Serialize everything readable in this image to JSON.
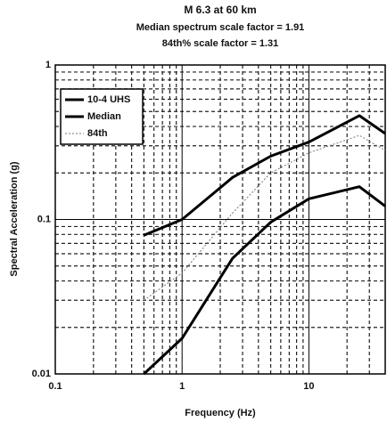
{
  "chart_data": {
    "type": "line",
    "title": "M 6.3 at 60 km",
    "subtitle": [
      "Median spectrum scale factor = 1.91",
      "84th% scale factor = 1.31"
    ],
    "xlabel": "Frequency (Hz)",
    "ylabel": "Spectral Acceleration (g)",
    "x": [
      0.5,
      1,
      2.5,
      5,
      10,
      25,
      40
    ],
    "series": [
      {
        "name": "10-4 UHS",
        "color": "#000000",
        "values": [
          0.079,
          0.1,
          0.187,
          0.257,
          0.317,
          0.47,
          0.36
        ]
      },
      {
        "name": "Median",
        "color": "#000000",
        "values": [
          0.01,
          0.017,
          0.056,
          0.096,
          0.136,
          0.163,
          0.122
        ]
      },
      {
        "name": "84th",
        "color": "#777777",
        "values": [
          0.03,
          0.045,
          0.11,
          0.2,
          0.27,
          0.35,
          0.28
        ]
      }
    ],
    "xlim": [
      0.1,
      40
    ],
    "ylim": [
      0.01,
      1
    ],
    "xticks": [
      0.1,
      1,
      10
    ],
    "yticks": [
      0.01,
      0.1,
      1
    ],
    "xminor": [
      0.2,
      0.3,
      0.4,
      0.5,
      0.6,
      0.7,
      0.8,
      0.9,
      2,
      3,
      4,
      5,
      6,
      7,
      8,
      9,
      20,
      30
    ],
    "yminor": [
      0.02,
      0.03,
      0.04,
      0.05,
      0.06,
      0.07,
      0.08,
      0.09,
      0.2,
      0.3,
      0.4,
      0.5,
      0.6,
      0.7,
      0.8,
      0.9
    ],
    "log_x": true,
    "log_y": true,
    "grid": true,
    "legend": "upper left"
  }
}
